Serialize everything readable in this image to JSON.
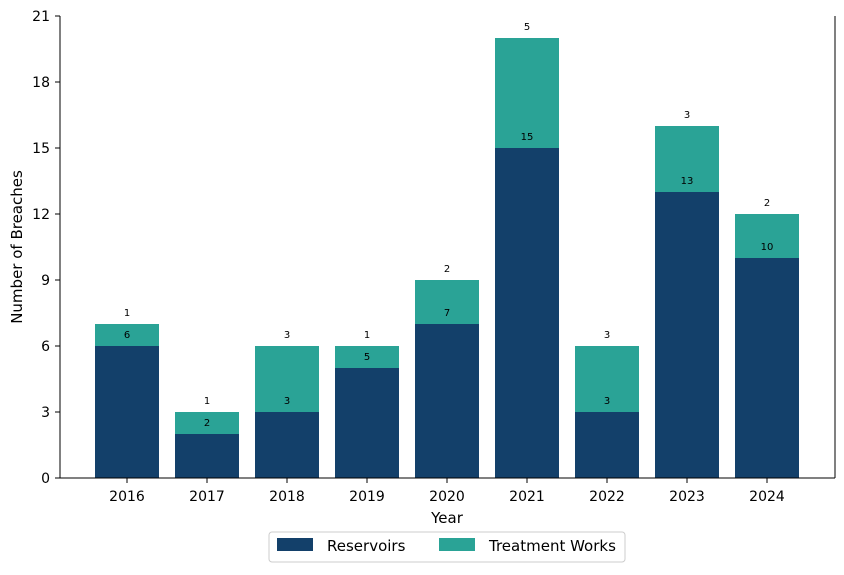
{
  "chart_data": {
    "type": "bar",
    "stacked": true,
    "categories": [
      "2016",
      "2017",
      "2018",
      "2019",
      "2020",
      "2021",
      "2022",
      "2023",
      "2024"
    ],
    "series": [
      {
        "name": "Reservoirs",
        "values": [
          6,
          2,
          3,
          5,
          7,
          15,
          3,
          13,
          10
        ],
        "color": "#13406a"
      },
      {
        "name": "Treatment Works",
        "values": [
          1,
          1,
          3,
          1,
          2,
          5,
          3,
          3,
          2
        ],
        "color": "#2aa396"
      }
    ],
    "title": "",
    "xlabel": "Year",
    "ylabel": "Number of Breaches",
    "ylim": [
      0,
      21
    ],
    "yticks": [
      0,
      3,
      6,
      9,
      12,
      15,
      18,
      21
    ],
    "grid": false,
    "legend_position": "bottom-center"
  }
}
